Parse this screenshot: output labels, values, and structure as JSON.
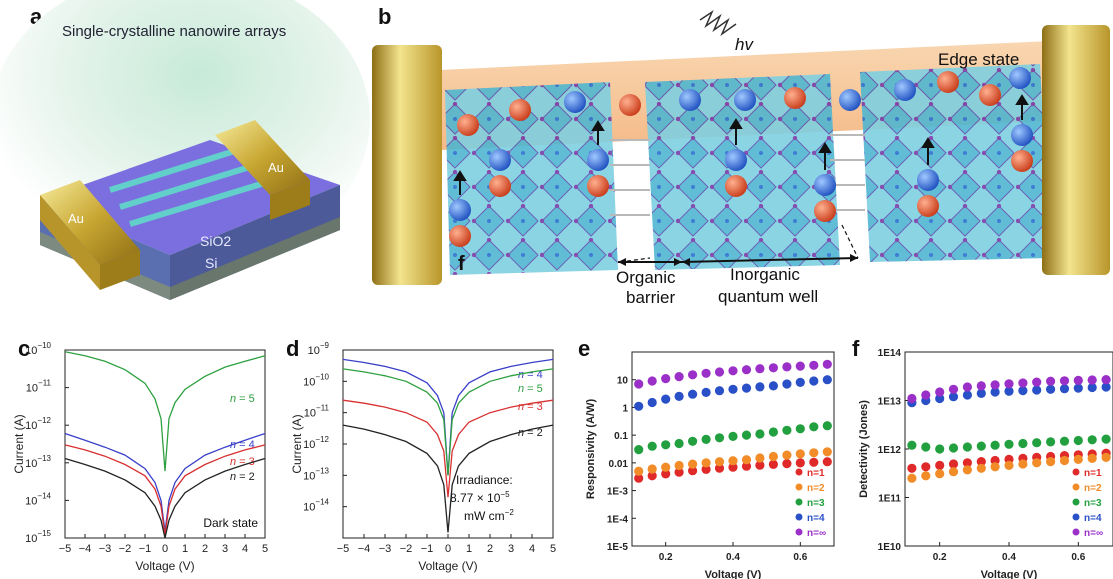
{
  "panels": {
    "a": {
      "letter": "a",
      "title": "Single-crystalline nanowire arrays",
      "labels": {
        "au_left": "Au",
        "au_right": "Au",
        "sio2": "SiO2",
        "si": "Si"
      }
    },
    "b": {
      "letter": "b",
      "hv": "hv",
      "edge_state": "Edge state",
      "f_mark": "f",
      "organic_barrier": [
        "Organic",
        "barrier"
      ],
      "inorganic_well": [
        "Inorganic",
        "quantum well"
      ],
      "electron": "e",
      "hole": "h"
    },
    "c": {
      "letter": "c",
      "annotation": "Dark state"
    },
    "d": {
      "letter": "d",
      "annotation": [
        "Irradiance:",
        "8.77 × 10",
        "mW cm"
      ]
    },
    "e": {
      "letter": "e"
    },
    "f": {
      "letter": "f"
    }
  },
  "colors": {
    "n2": "#222222",
    "n3": "#d83030",
    "n4": "#3a40c8",
    "n5": "#2ea040",
    "red": "#e02a2a",
    "orange": "#f28c28",
    "green": "#22a040",
    "blue": "#2a50c8",
    "purple": "#9a30c8"
  },
  "chart_data": [
    {
      "id": "c",
      "type": "line",
      "xlabel": "Voltage (V)",
      "ylabel": "Current (A)",
      "xlim": [
        -5,
        5
      ],
      "ylim": [
        1e-15,
        1e-10
      ],
      "yscale": "log",
      "xticks": [
        -5,
        -4,
        -3,
        -2,
        -1,
        0,
        1,
        2,
        3,
        4,
        5
      ],
      "yticks": [
        1e-15,
        1e-14,
        1e-13,
        1e-12,
        1e-11,
        1e-10
      ],
      "ytick_labels": [
        "10",
        "10",
        "10",
        "10",
        "10",
        "10"
      ],
      "ytick_exps": [
        "-15",
        "-14",
        "-13",
        "-12",
        "-11",
        "-10"
      ],
      "series": [
        {
          "name": "n = 5",
          "x": [
            -5,
            -4,
            -3,
            -2,
            -1,
            -0.5,
            -0.2,
            0,
            0.2,
            0.5,
            1,
            2,
            3,
            4,
            5
          ],
          "y": [
            9e-11,
            7e-11,
            5e-11,
            3e-11,
            1.3e-11,
            5e-12,
            1.5e-12,
            6e-14,
            1.5e-12,
            4e-12,
            9e-12,
            2e-11,
            3.5e-11,
            5e-11,
            7e-11
          ]
        },
        {
          "name": "n = 4",
          "x": [
            -5,
            -4,
            -3,
            -2,
            -1,
            -0.5,
            -0.2,
            0,
            0.2,
            0.5,
            1,
            2,
            3,
            4,
            5
          ],
          "y": [
            6e-13,
            4e-13,
            2.6e-13,
            1.6e-13,
            7e-14,
            3e-14,
            1e-14,
            1.5e-15,
            1e-14,
            3e-14,
            7e-14,
            1.6e-13,
            2.6e-13,
            4e-13,
            6e-13
          ]
        },
        {
          "name": "n = 3",
          "x": [
            -5,
            -4,
            -3,
            -2,
            -1,
            -0.5,
            -0.2,
            0,
            0.2,
            0.5,
            1,
            2,
            3,
            4,
            5
          ],
          "y": [
            3e-13,
            2.2e-13,
            1.5e-13,
            9e-14,
            4.5e-14,
            2e-14,
            7e-15,
            1.2e-15,
            7e-15,
            2e-14,
            4.5e-14,
            9e-14,
            1.5e-13,
            2.2e-13,
            3e-13
          ]
        },
        {
          "name": "n = 2",
          "x": [
            -5,
            -4,
            -3,
            -2,
            -1,
            -0.5,
            -0.2,
            0,
            0.2,
            0.5,
            1,
            2,
            3,
            4,
            5
          ],
          "y": [
            1.3e-13,
            9e-14,
            6e-14,
            3.5e-14,
            1.6e-14,
            7e-15,
            3e-15,
            1e-15,
            3e-15,
            7e-15,
            1.6e-14,
            3.5e-14,
            6e-14,
            9e-14,
            1.3e-13
          ]
        }
      ]
    },
    {
      "id": "d",
      "type": "line",
      "xlabel": "Voltage (V)",
      "ylabel": "Current (A)",
      "xlim": [
        -5,
        5
      ],
      "ylim": [
        1e-15,
        1e-09
      ],
      "yscale": "log",
      "xticks": [
        -5,
        -4,
        -3,
        -2,
        -1,
        0,
        1,
        2,
        3,
        4,
        5
      ],
      "yticks": [
        1e-14,
        1e-13,
        1e-12,
        1e-11,
        1e-10,
        1e-09
      ],
      "ytick_labels": [
        "10",
        "10",
        "10",
        "10",
        "10",
        "10"
      ],
      "ytick_exps": [
        "-14",
        "-13",
        "-12",
        "-11",
        "-10",
        "-9"
      ],
      "series": [
        {
          "name": "n = 4",
          "x": [
            -5,
            -4,
            -3,
            -2,
            -1,
            -0.5,
            -0.2,
            0,
            0.2,
            0.5,
            1,
            2,
            3,
            4,
            5
          ],
          "y": [
            5e-10,
            4e-10,
            3e-10,
            2e-10,
            9e-11,
            3.5e-11,
            1e-11,
            1e-13,
            1e-11,
            3.5e-11,
            9e-11,
            2e-10,
            3e-10,
            4e-10,
            5e-10
          ]
        },
        {
          "name": "n = 5",
          "x": [
            -5,
            -4,
            -3,
            -2,
            -1,
            -0.5,
            -0.2,
            0,
            0.2,
            0.5,
            1,
            2,
            3,
            4,
            5
          ],
          "y": [
            2.5e-10,
            2e-10,
            1.5e-10,
            1e-10,
            4.5e-11,
            2e-11,
            6e-12,
            1e-13,
            6e-12,
            2e-11,
            4.5e-11,
            1e-10,
            1.5e-10,
            2e-10,
            2.5e-10
          ]
        },
        {
          "name": "n = 3",
          "x": [
            -5,
            -4,
            -3,
            -2,
            -1,
            -0.5,
            -0.2,
            0,
            0.2,
            0.5,
            1,
            2,
            3,
            4,
            5
          ],
          "y": [
            2.5e-11,
            2e-11,
            1.5e-11,
            1e-11,
            5e-12,
            2e-12,
            6e-13,
            2e-14,
            6e-13,
            2e-12,
            5e-12,
            1e-11,
            1.5e-11,
            2e-11,
            2.5e-11
          ]
        },
        {
          "name": "n = 2",
          "x": [
            -5,
            -4,
            -3,
            -2,
            -1,
            -0.5,
            -0.2,
            0,
            0.2,
            0.5,
            1,
            2,
            3,
            4,
            5
          ],
          "y": [
            4e-12,
            3e-12,
            2e-12,
            1.2e-12,
            5e-13,
            2e-13,
            5e-14,
            1.5e-15,
            5e-14,
            2e-13,
            5e-13,
            1.2e-12,
            2e-12,
            3e-12,
            4e-12
          ]
        }
      ],
      "annotation_exps": [
        "-5",
        "-2"
      ]
    },
    {
      "id": "e",
      "type": "scatter",
      "xlabel": "Voltage (V)",
      "ylabel": "Responsivity (A/W)",
      "xlim": [
        0.1,
        0.7
      ],
      "ylim": [
        1e-05,
        100
      ],
      "yscale": "log",
      "xticks": [
        0.2,
        0.4,
        0.6
      ],
      "xtick_labels": [
        "0.2",
        "0.4",
        "0.6"
      ],
      "yticks": [
        1e-05,
        0.0001,
        0.001,
        0.01,
        0.1,
        1,
        10
      ],
      "ytick_labels": [
        "1E-5",
        "1E-4",
        "1E-3",
        "0.01",
        "0.1",
        "1",
        "10"
      ],
      "legend": [
        "n=1",
        "n=2",
        "n=3",
        "n=4",
        "n=∞"
      ],
      "series": [
        {
          "name": "n=1",
          "color": "#e02a2a",
          "x": [
            0.12,
            0.16,
            0.2,
            0.24,
            0.28,
            0.32,
            0.36,
            0.4,
            0.44,
            0.48,
            0.52,
            0.56,
            0.6,
            0.64,
            0.68
          ],
          "y": [
            0.0028,
            0.0034,
            0.004,
            0.0046,
            0.0052,
            0.0058,
            0.0064,
            0.007,
            0.0076,
            0.0082,
            0.0088,
            0.0094,
            0.01,
            0.0105,
            0.011
          ]
        },
        {
          "name": "n=2",
          "color": "#f28c28",
          "x": [
            0.12,
            0.16,
            0.2,
            0.24,
            0.28,
            0.32,
            0.36,
            0.4,
            0.44,
            0.48,
            0.52,
            0.56,
            0.6,
            0.64,
            0.68
          ],
          "y": [
            0.005,
            0.006,
            0.007,
            0.008,
            0.009,
            0.01,
            0.011,
            0.012,
            0.013,
            0.015,
            0.017,
            0.019,
            0.021,
            0.023,
            0.025
          ]
        },
        {
          "name": "n=3",
          "color": "#22a040",
          "x": [
            0.12,
            0.16,
            0.2,
            0.24,
            0.28,
            0.32,
            0.36,
            0.4,
            0.44,
            0.48,
            0.52,
            0.56,
            0.6,
            0.64,
            0.68
          ],
          "y": [
            0.03,
            0.04,
            0.045,
            0.05,
            0.06,
            0.07,
            0.08,
            0.09,
            0.1,
            0.11,
            0.13,
            0.15,
            0.17,
            0.2,
            0.22
          ]
        },
        {
          "name": "n=4",
          "color": "#2a50c8",
          "x": [
            0.12,
            0.16,
            0.2,
            0.24,
            0.28,
            0.32,
            0.36,
            0.4,
            0.44,
            0.48,
            0.52,
            0.56,
            0.6,
            0.64,
            0.68
          ],
          "y": [
            1.1,
            1.5,
            2,
            2.5,
            3,
            3.5,
            4,
            4.5,
            5,
            5.5,
            6,
            7,
            8,
            9,
            10
          ]
        },
        {
          "name": "n=∞",
          "color": "#9a30c8",
          "x": [
            0.12,
            0.16,
            0.2,
            0.24,
            0.28,
            0.32,
            0.36,
            0.4,
            0.44,
            0.48,
            0.52,
            0.56,
            0.6,
            0.64,
            0.68
          ],
          "y": [
            7,
            9,
            11,
            13,
            15,
            17,
            19,
            21,
            23,
            25,
            27,
            29,
            31,
            33,
            36
          ]
        }
      ]
    },
    {
      "id": "f",
      "type": "scatter",
      "xlabel": "Voltage (V)",
      "ylabel": "Detectivity (Jones)",
      "xlim": [
        0.1,
        0.7
      ],
      "ylim": [
        10000000000.0,
        100000000000000.0
      ],
      "yscale": "log",
      "xticks": [
        0.2,
        0.4,
        0.6
      ],
      "xtick_labels": [
        "0.2",
        "0.4",
        "0.6"
      ],
      "yticks": [
        10000000000.0,
        100000000000.0,
        1000000000000.0,
        10000000000000.0,
        100000000000000.0
      ],
      "ytick_labels": [
        "1E10",
        "1E11",
        "1E12",
        "1E13",
        "1E14"
      ],
      "legend": [
        "n=1",
        "n=2",
        "n=3",
        "n=4",
        "n=∞"
      ],
      "series": [
        {
          "name": "n=1",
          "color": "#e02a2a",
          "x": [
            0.12,
            0.16,
            0.2,
            0.24,
            0.28,
            0.32,
            0.36,
            0.4,
            0.44,
            0.48,
            0.52,
            0.56,
            0.6,
            0.64,
            0.68
          ],
          "y": [
            400000000000.0,
            430000000000.0,
            460000000000.0,
            490000000000.0,
            520000000000.0,
            550000000000.0,
            580000000000.0,
            610000000000.0,
            640000000000.0,
            670000000000.0,
            700000000000.0,
            730000000000.0,
            760000000000.0,
            790000000000.0,
            820000000000.0
          ]
        },
        {
          "name": "n=2",
          "color": "#f28c28",
          "x": [
            0.12,
            0.16,
            0.2,
            0.24,
            0.28,
            0.32,
            0.36,
            0.4,
            0.44,
            0.48,
            0.52,
            0.56,
            0.6,
            0.64,
            0.68
          ],
          "y": [
            250000000000.0,
            280000000000.0,
            310000000000.0,
            340000000000.0,
            370000000000.0,
            400000000000.0,
            430000000000.0,
            460000000000.0,
            490000000000.0,
            520000000000.0,
            550000000000.0,
            580000000000.0,
            610000000000.0,
            640000000000.0,
            670000000000.0
          ]
        },
        {
          "name": "n=3",
          "color": "#22a040",
          "x": [
            0.12,
            0.16,
            0.2,
            0.24,
            0.28,
            0.32,
            0.36,
            0.4,
            0.44,
            0.48,
            0.52,
            0.56,
            0.6,
            0.64,
            0.68
          ],
          "y": [
            1200000000000.0,
            1100000000000.0,
            1000000000000.0,
            1050000000000.0,
            1100000000000.0,
            1150000000000.0,
            1200000000000.0,
            1250000000000.0,
            1300000000000.0,
            1350000000000.0,
            1400000000000.0,
            1450000000000.0,
            1500000000000.0,
            1550000000000.0,
            1600000000000.0
          ]
        },
        {
          "name": "n=4",
          "color": "#2a50c8",
          "x": [
            0.12,
            0.16,
            0.2,
            0.24,
            0.28,
            0.32,
            0.36,
            0.4,
            0.44,
            0.48,
            0.52,
            0.56,
            0.6,
            0.64,
            0.68
          ],
          "y": [
            9000000000000.0,
            10000000000000.0,
            11000000000000.0,
            12000000000000.0,
            13000000000000.0,
            14000000000000.0,
            15000000000000.0,
            15500000000000.0,
            16000000000000.0,
            16500000000000.0,
            17000000000000.0,
            17500000000000.0,
            18000000000000.0,
            18500000000000.0,
            19000000000000.0
          ]
        },
        {
          "name": "n=∞",
          "color": "#9a30c8",
          "x": [
            0.12,
            0.16,
            0.2,
            0.24,
            0.28,
            0.32,
            0.36,
            0.4,
            0.44,
            0.48,
            0.52,
            0.56,
            0.6,
            0.64,
            0.68
          ],
          "y": [
            11000000000000.0,
            13000000000000.0,
            15000000000000.0,
            17000000000000.0,
            19000000000000.0,
            20000000000000.0,
            21000000000000.0,
            22000000000000.0,
            23000000000000.0,
            24000000000000.0,
            25000000000000.0,
            25500000000000.0,
            26000000000000.0,
            26500000000000.0,
            27000000000000.0
          ]
        }
      ]
    }
  ]
}
